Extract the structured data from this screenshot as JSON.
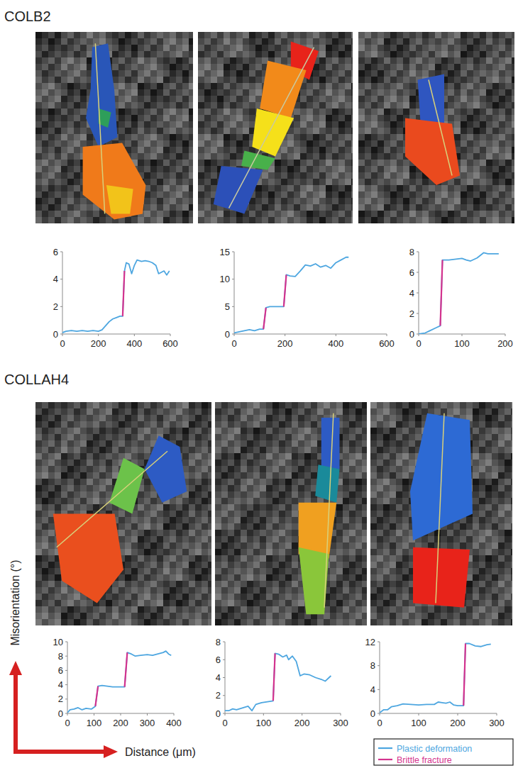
{
  "chart_data": [
    {
      "type": "line",
      "x": [
        0,
        20,
        50,
        80,
        110,
        140,
        170,
        200,
        220,
        240,
        260,
        280,
        300,
        320,
        335,
        345,
        355,
        370,
        385,
        400,
        415,
        440,
        460,
        480,
        500,
        520,
        535,
        550,
        565,
        580,
        595
      ],
      "series": [
        {
          "name": "Plastic deformation",
          "color": "#4da6e0",
          "values": [
            0.1,
            0.2,
            0.25,
            0.2,
            0.25,
            0.2,
            0.25,
            0.2,
            0.3,
            0.6,
            0.9,
            1.1,
            1.2,
            1.3,
            1.3,
            4.6,
            5.2,
            5.1,
            4.4,
            5.0,
            5.4,
            5.3,
            5.35,
            5.3,
            5.2,
            5.0,
            4.4,
            4.5,
            4.6,
            4.3,
            4.6
          ]
        },
        {
          "name": "Brittle fracture",
          "color": "#d4338e",
          "values": [
            null,
            null,
            null,
            null,
            null,
            null,
            null,
            null,
            null,
            null,
            null,
            null,
            null,
            null,
            1.3,
            4.6,
            null,
            null,
            null,
            null,
            null,
            null,
            null,
            null,
            null,
            null,
            null,
            null,
            null,
            null,
            null
          ]
        }
      ],
      "xlim": [
        0,
        600
      ],
      "xticks": [
        0,
        200,
        400,
        600
      ],
      "ylim": [
        0,
        6
      ],
      "yticks": [
        0,
        2,
        4,
        6
      ]
    },
    {
      "type": "line",
      "x": [
        0,
        30,
        60,
        80,
        100,
        115,
        125,
        140,
        160,
        180,
        195,
        205,
        220,
        240,
        260,
        280,
        300,
        320,
        340,
        360,
        380,
        400,
        420,
        440,
        450
      ],
      "series": [
        {
          "name": "Plastic deformation",
          "color": "#4da6e0",
          "values": [
            0.2,
            0.5,
            0.8,
            0.6,
            0.9,
            0.9,
            4.8,
            5.0,
            5.0,
            5.0,
            5.0,
            10.8,
            10.6,
            10.5,
            11.5,
            12.6,
            12.4,
            12.8,
            12.2,
            12.5,
            12.0,
            13.0,
            13.5,
            14.0,
            14.0
          ]
        },
        {
          "name": "Brittle fracture",
          "color": "#d4338e",
          "values": [
            null,
            null,
            null,
            null,
            null,
            0.9,
            4.8,
            null,
            null,
            null,
            5.0,
            10.8,
            null,
            null,
            null,
            null,
            null,
            null,
            null,
            null,
            null,
            null,
            null,
            null,
            null
          ]
        }
      ],
      "xlim": [
        0,
        600
      ],
      "xticks": [
        0,
        200,
        400,
        600
      ],
      "ylim": [
        0,
        15
      ],
      "yticks": [
        0,
        5,
        10,
        15
      ]
    },
    {
      "type": "line",
      "x": [
        0,
        15,
        25,
        40,
        50,
        55,
        70,
        90,
        100,
        110,
        120,
        135,
        150,
        160,
        170,
        185
      ],
      "series": [
        {
          "name": "Plastic deformation",
          "color": "#4da6e0",
          "values": [
            0,
            0.1,
            0.3,
            0.6,
            0.8,
            7.2,
            7.2,
            7.3,
            7.35,
            7.2,
            7.1,
            7.4,
            7.9,
            7.8,
            7.8,
            7.8
          ]
        },
        {
          "name": "Brittle fracture",
          "color": "#d4338e",
          "values": [
            null,
            null,
            null,
            null,
            0.8,
            7.2,
            null,
            null,
            null,
            null,
            null,
            null,
            null,
            null,
            null,
            null
          ]
        }
      ],
      "xlim": [
        0,
        200
      ],
      "xticks": [
        0,
        100,
        200
      ],
      "ylim": [
        0,
        8
      ],
      "yticks": [
        0,
        2,
        4,
        6,
        8
      ]
    },
    {
      "type": "line",
      "x": [
        0,
        10,
        25,
        40,
        55,
        70,
        90,
        105,
        115,
        130,
        150,
        170,
        190,
        215,
        225,
        240,
        255,
        275,
        300,
        320,
        340,
        360,
        370,
        380,
        390
      ],
      "series": [
        {
          "name": "Plastic deformation",
          "color": "#4da6e0",
          "values": [
            0.1,
            0.5,
            0.6,
            0.8,
            0.5,
            0.7,
            0.6,
            1.0,
            3.8,
            3.9,
            3.8,
            3.7,
            3.7,
            3.7,
            8.5,
            8.3,
            8.0,
            8.1,
            8.2,
            8.1,
            8.3,
            8.5,
            8.7,
            8.3,
            8.1
          ]
        },
        {
          "name": "Brittle fracture",
          "color": "#d4338e",
          "values": [
            null,
            null,
            null,
            null,
            null,
            null,
            null,
            1.0,
            3.8,
            null,
            null,
            null,
            null,
            3.7,
            8.5,
            null,
            null,
            null,
            null,
            null,
            null,
            null,
            null,
            null,
            null
          ]
        }
      ],
      "xlim": [
        0,
        400
      ],
      "xticks": [
        0,
        100,
        200,
        300,
        400
      ],
      "ylim": [
        0,
        10
      ],
      "yticks": [
        0,
        2,
        4,
        6,
        8,
        10
      ]
    },
    {
      "type": "line",
      "x": [
        0,
        10,
        20,
        30,
        45,
        60,
        70,
        80,
        95,
        110,
        125,
        130,
        140,
        150,
        160,
        165,
        175,
        185,
        195,
        205,
        220,
        235,
        250,
        260,
        270,
        275
      ],
      "series": [
        {
          "name": "Plastic deformation",
          "color": "#4da6e0",
          "values": [
            0.3,
            0.3,
            0.5,
            0.4,
            0.6,
            0.8,
            0.3,
            1.0,
            1.2,
            1.3,
            1.4,
            6.7,
            6.6,
            6.3,
            6.5,
            6.0,
            6.4,
            5.8,
            4.2,
            4.4,
            4.3,
            4.0,
            3.8,
            3.6,
            4.0,
            4.2
          ]
        },
        {
          "name": "Brittle fracture",
          "color": "#d4338e",
          "values": [
            null,
            null,
            null,
            null,
            null,
            null,
            null,
            null,
            null,
            null,
            1.4,
            6.7,
            null,
            null,
            null,
            null,
            null,
            null,
            null,
            null,
            null,
            null,
            null,
            null,
            null,
            null
          ]
        }
      ],
      "xlim": [
        0,
        300
      ],
      "xticks": [
        0,
        100,
        200,
        300
      ],
      "ylim": [
        0,
        8
      ],
      "yticks": [
        0,
        2,
        4,
        6,
        8
      ]
    },
    {
      "type": "line",
      "x": [
        0,
        10,
        20,
        30,
        45,
        60,
        80,
        100,
        120,
        140,
        150,
        160,
        170,
        180,
        190,
        200,
        215,
        220,
        230,
        245,
        260,
        275,
        285
      ],
      "series": [
        {
          "name": "Plastic deformation",
          "color": "#4da6e0",
          "values": [
            0.1,
            0.6,
            0.6,
            1.1,
            1.3,
            1.6,
            1.5,
            1.4,
            1.5,
            1.5,
            1.9,
            1.8,
            1.7,
            1.9,
            1.4,
            1.3,
            1.3,
            11.7,
            11.7,
            11.3,
            11.2,
            11.5,
            11.6
          ]
        },
        {
          "name": "Brittle fracture",
          "color": "#d4338e",
          "values": [
            null,
            null,
            null,
            null,
            null,
            null,
            null,
            null,
            null,
            null,
            null,
            null,
            null,
            null,
            null,
            null,
            1.3,
            11.7,
            null,
            null,
            null,
            null,
            null
          ]
        }
      ],
      "xlim": [
        0,
        300
      ],
      "xticks": [
        0,
        100,
        200,
        300
      ],
      "ylim": [
        0,
        12
      ],
      "yticks": [
        0,
        4,
        8,
        12
      ]
    }
  ],
  "figure": {
    "groups": [
      "COLB2",
      "COLLAH4"
    ],
    "y_label": "Misorientation (°)",
    "x_label": "Distance (μm)"
  }
}
